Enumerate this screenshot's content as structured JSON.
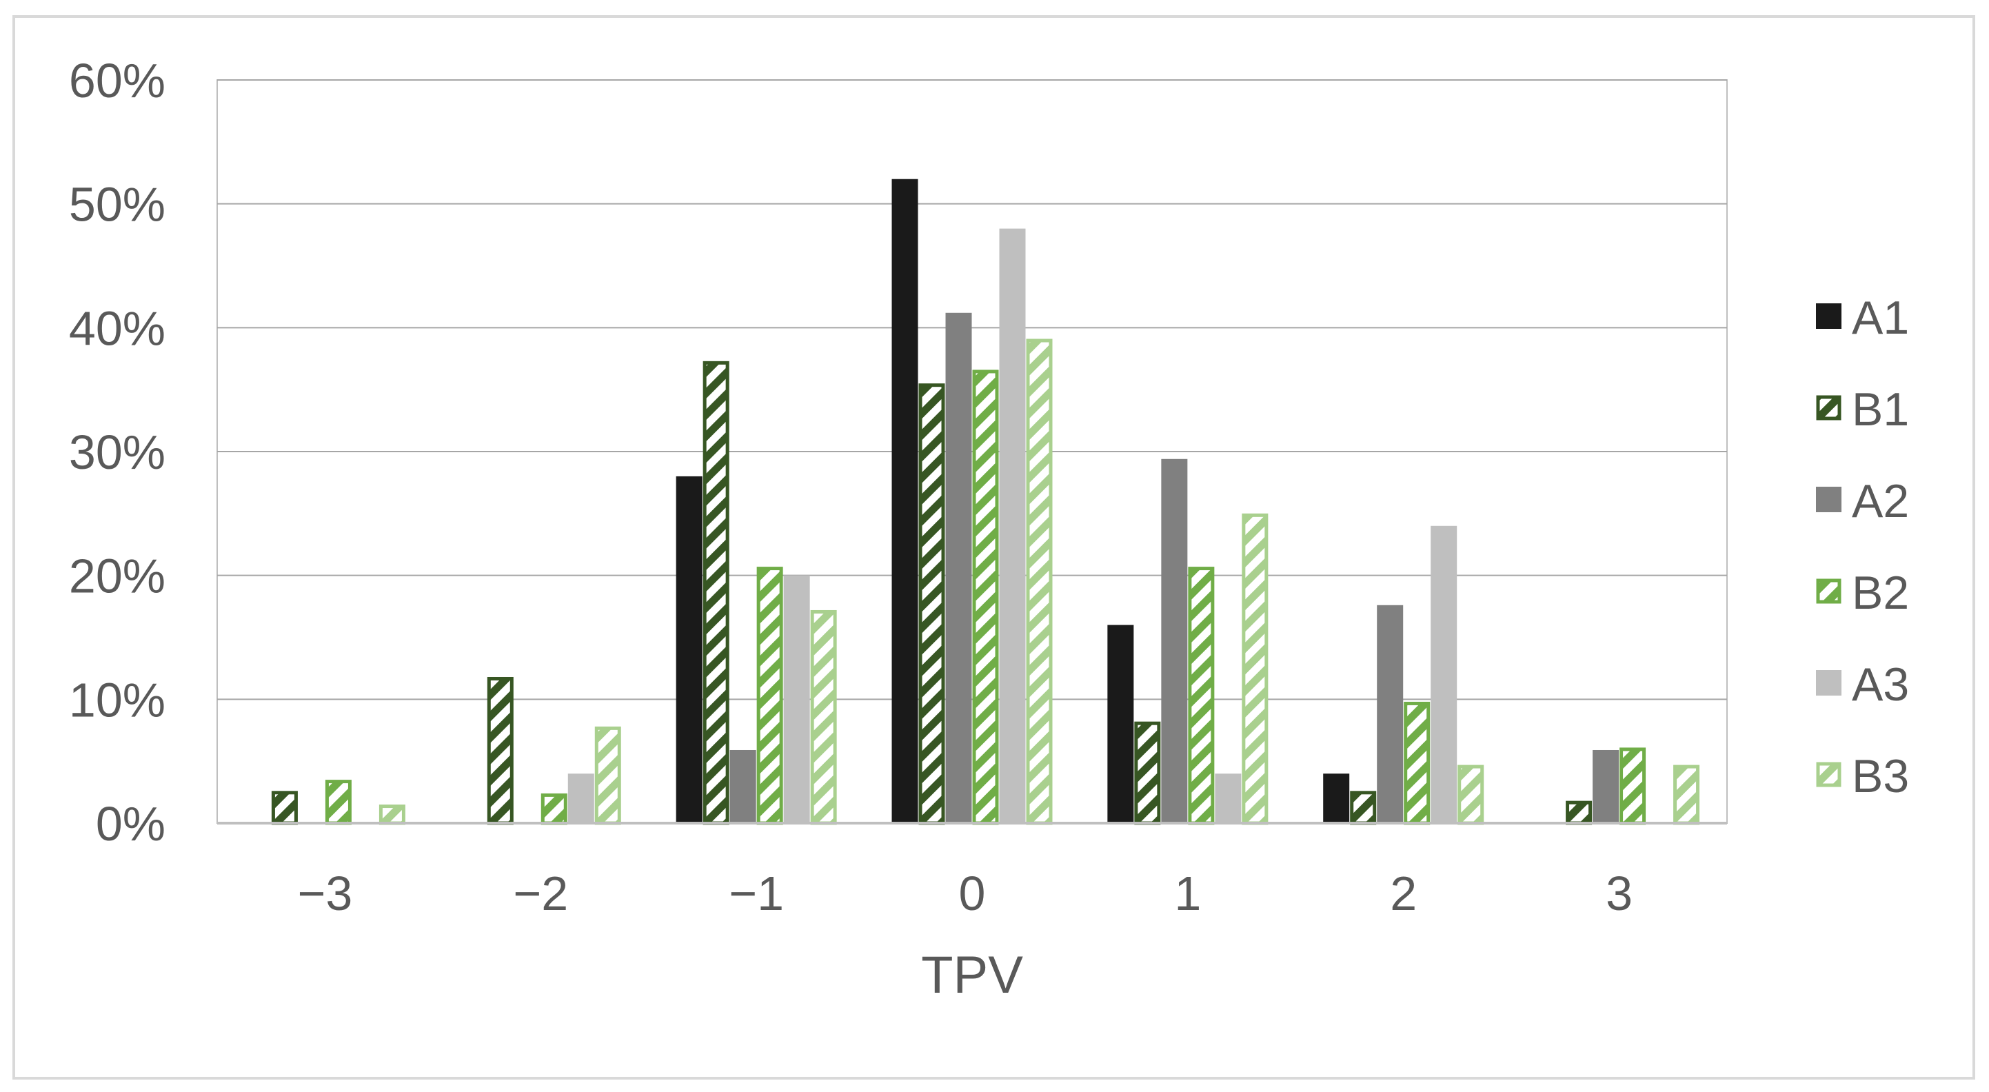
{
  "chart_data": {
    "type": "bar",
    "title": "",
    "xlabel": "TPV",
    "ylabel": "",
    "categories": [
      "−3",
      "−2",
      "−1",
      "0",
      "1",
      "2",
      "3"
    ],
    "ylim": [
      0,
      60
    ],
    "yticks": [
      "0%",
      "10%",
      "20%",
      "30%",
      "40%",
      "50%",
      "60%"
    ],
    "grid": true,
    "legend_position": "right",
    "series": [
      {
        "name": "A1",
        "values": [
          0,
          0,
          28,
          52,
          16,
          4,
          0
        ],
        "color": "#1a1a1a",
        "style": "solid"
      },
      {
        "name": "B1",
        "values": [
          2.6,
          11.8,
          37.3,
          35.5,
          8.2,
          2.6,
          1.8
        ],
        "color": "#375623",
        "style": "hatched"
      },
      {
        "name": "A2",
        "values": [
          0,
          0,
          5.9,
          41.2,
          29.4,
          17.6,
          5.9
        ],
        "color": "#808080",
        "style": "solid"
      },
      {
        "name": "B2",
        "values": [
          3.5,
          2.4,
          20.7,
          36.6,
          20.7,
          9.8,
          6.1
        ],
        "color": "#70ad47",
        "style": "hatched"
      },
      {
        "name": "A3",
        "values": [
          0,
          4,
          20,
          48,
          4,
          24,
          0
        ],
        "color": "#bfbfbf",
        "style": "solid"
      },
      {
        "name": "B3",
        "values": [
          1.5,
          7.8,
          17.2,
          39.1,
          25,
          4.7,
          4.7
        ],
        "color": "#a9d08e",
        "style": "hatched"
      }
    ]
  }
}
